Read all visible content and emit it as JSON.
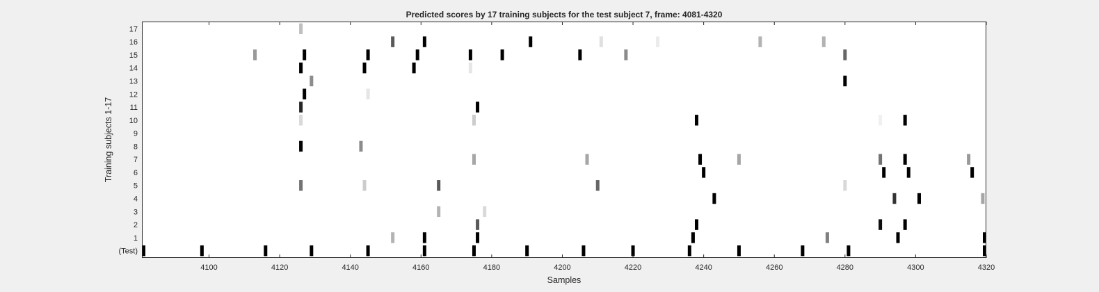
{
  "chart_data": {
    "type": "heatmap",
    "title": "Predicted scores by 17 training subjects for the test subject 7, frame: 4081-4320",
    "xlabel": "Samples",
    "ylabel": "Training subjects 1-17",
    "xlim": [
      4081,
      4320
    ],
    "xticks": [
      4100,
      4120,
      4140,
      4160,
      4180,
      4200,
      4220,
      4240,
      4260,
      4280,
      4300,
      4320
    ],
    "row_labels": [
      "(Test)",
      "1",
      "2",
      "3",
      "4",
      "5",
      "6",
      "7",
      "8",
      "9",
      "10",
      "11",
      "12",
      "13",
      "14",
      "15",
      "16",
      "17"
    ],
    "colormap": "gray (darker = higher score)",
    "grid": false,
    "background": "#ffffff",
    "series": [
      {
        "row": "(Test)",
        "marks": [
          [
            4081,
            1.0
          ],
          [
            4098,
            1.0
          ],
          [
            4116,
            1.0
          ],
          [
            4129,
            1.0
          ],
          [
            4145,
            1.0
          ],
          [
            4161,
            1.0
          ],
          [
            4175,
            1.0
          ],
          [
            4190,
            1.0
          ],
          [
            4206,
            1.0
          ],
          [
            4220,
            1.0
          ],
          [
            4236,
            1.0
          ],
          [
            4250,
            1.0
          ],
          [
            4268,
            1.0
          ],
          [
            4281,
            1.0
          ],
          [
            4320,
            1.0
          ]
        ]
      },
      {
        "row": "1",
        "marks": [
          [
            4152,
            0.3
          ],
          [
            4161,
            1.0
          ],
          [
            4176,
            1.0
          ],
          [
            4237,
            1.0
          ],
          [
            4275,
            0.5
          ],
          [
            4295,
            1.0
          ],
          [
            4320,
            1.0
          ]
        ]
      },
      {
        "row": "2",
        "marks": [
          [
            4176,
            0.65
          ],
          [
            4238,
            1.0
          ],
          [
            4290,
            0.95
          ],
          [
            4297,
            1.0
          ]
        ]
      },
      {
        "row": "3",
        "marks": [
          [
            4165,
            0.3
          ],
          [
            4178,
            0.15
          ]
        ]
      },
      {
        "row": "4",
        "marks": [
          [
            4243,
            1.0
          ],
          [
            4294,
            0.8
          ],
          [
            4301,
            1.0
          ],
          [
            4319,
            0.35
          ]
        ]
      },
      {
        "row": "5",
        "marks": [
          [
            4126,
            0.55
          ],
          [
            4144,
            0.2
          ],
          [
            4165,
            0.65
          ],
          [
            4210,
            0.6
          ],
          [
            4280,
            0.15
          ]
        ]
      },
      {
        "row": "6",
        "marks": [
          [
            4240,
            1.0
          ],
          [
            4291,
            1.0
          ],
          [
            4298,
            1.0
          ],
          [
            4316,
            1.0
          ]
        ]
      },
      {
        "row": "7",
        "marks": [
          [
            4175,
            0.35
          ],
          [
            4207,
            0.35
          ],
          [
            4239,
            1.0
          ],
          [
            4250,
            0.35
          ],
          [
            4290,
            0.55
          ],
          [
            4297,
            1.0
          ],
          [
            4315,
            0.4
          ]
        ]
      },
      {
        "row": "8",
        "marks": [
          [
            4126,
            1.0
          ],
          [
            4143,
            0.45
          ]
        ]
      },
      {
        "row": "9",
        "marks": []
      },
      {
        "row": "10",
        "marks": [
          [
            4126,
            0.15
          ],
          [
            4175,
            0.2
          ],
          [
            4238,
            1.0
          ],
          [
            4290,
            0.06
          ],
          [
            4297,
            1.0
          ]
        ]
      },
      {
        "row": "11",
        "marks": [
          [
            4126,
            0.85
          ],
          [
            4176,
            1.0
          ]
        ]
      },
      {
        "row": "12",
        "marks": [
          [
            4127,
            1.0
          ],
          [
            4145,
            0.1
          ]
        ]
      },
      {
        "row": "13",
        "marks": [
          [
            4129,
            0.45
          ],
          [
            4280,
            1.0
          ]
        ]
      },
      {
        "row": "14",
        "marks": [
          [
            4126,
            1.0
          ],
          [
            4144,
            1.0
          ],
          [
            4158,
            1.0
          ],
          [
            4174,
            0.1
          ]
        ]
      },
      {
        "row": "15",
        "marks": [
          [
            4113,
            0.4
          ],
          [
            4127,
            1.0
          ],
          [
            4145,
            1.0
          ],
          [
            4159,
            1.0
          ],
          [
            4174,
            1.0
          ],
          [
            4183,
            1.0
          ],
          [
            4205,
            1.0
          ],
          [
            4218,
            0.45
          ],
          [
            4280,
            0.6
          ]
        ]
      },
      {
        "row": "16",
        "marks": [
          [
            4152,
            0.65
          ],
          [
            4161,
            1.0
          ],
          [
            4191,
            1.0
          ],
          [
            4211,
            0.12
          ],
          [
            4227,
            0.08
          ],
          [
            4256,
            0.3
          ],
          [
            4274,
            0.3
          ]
        ]
      },
      {
        "row": "17",
        "marks": [
          [
            4126,
            0.25
          ]
        ]
      }
    ]
  }
}
